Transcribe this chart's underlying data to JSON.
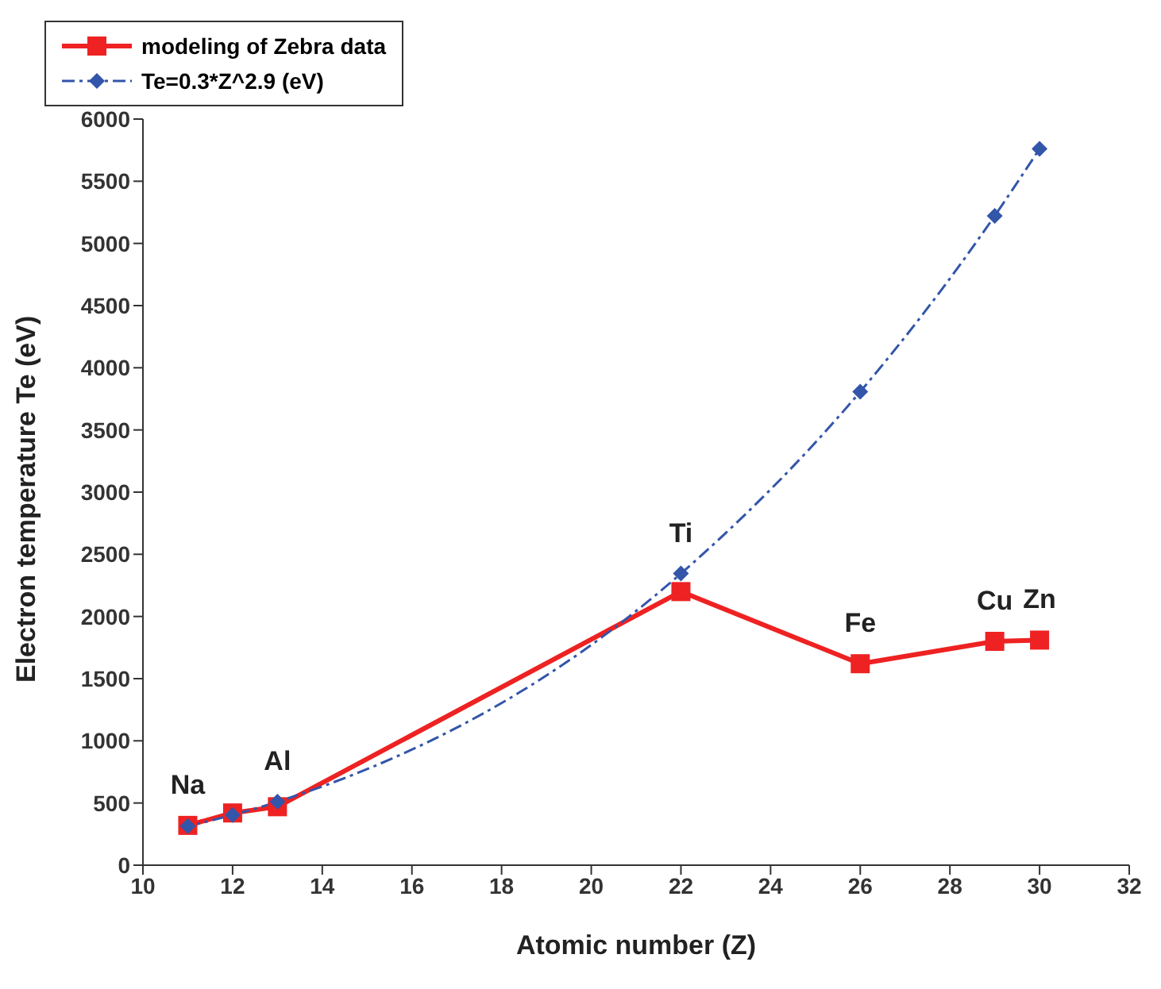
{
  "chart_data": {
    "type": "line",
    "xlabel": "Atomic number (Z)",
    "ylabel": "Electron temperature Te (eV)",
    "x": [
      11,
      12,
      13,
      22,
      26,
      29,
      30
    ],
    "series": [
      {
        "name": "modeling of Zebra data",
        "color": "#ee2222",
        "values": [
          320,
          420,
          470,
          2200,
          1620,
          1800,
          1810
        ],
        "marker": "square",
        "line_style": "solid"
      },
      {
        "name": "Te=0.3*Z^2.9 (eV)",
        "color": "#3355aa",
        "values": [
          314,
          404,
          510,
          2345,
          3808,
          5222,
          5761
        ],
        "marker": "diamond",
        "line_style": "dashed"
      }
    ],
    "xlim": [
      10,
      32
    ],
    "xticks": [
      10,
      12,
      14,
      16,
      18,
      20,
      22,
      24,
      26,
      28,
      30,
      32
    ],
    "ylim": [
      0,
      6000
    ],
    "yticks": [
      0,
      500,
      1000,
      1500,
      2000,
      2500,
      3000,
      3500,
      4000,
      4500,
      5000,
      5500,
      6000
    ],
    "grid": false,
    "legend": "top",
    "annotations": [
      {
        "text": "Na",
        "x": 11,
        "y": 320
      },
      {
        "text": "Al",
        "x": 13,
        "y": 510
      },
      {
        "text": "Ti",
        "x": 22,
        "y": 2345
      },
      {
        "text": "Fe",
        "x": 26,
        "y": 1620
      },
      {
        "text": "Cu",
        "x": 29,
        "y": 1800
      },
      {
        "text": "Zn",
        "x": 30,
        "y": 1810
      }
    ]
  }
}
